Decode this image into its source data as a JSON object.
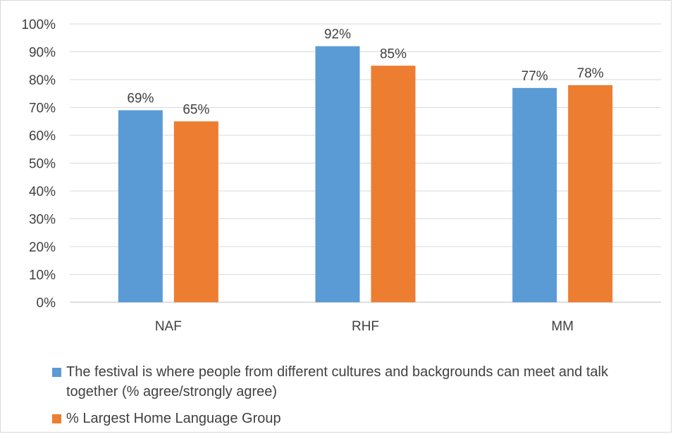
{
  "chart_data": {
    "type": "bar",
    "categories": [
      "NAF",
      "RHF",
      "MM"
    ],
    "series": [
      {
        "name": "The festival is where people from different cultures and backgrounds can meet and talk together (% agree/strongly agree)",
        "values": [
          69,
          92,
          77
        ],
        "color": "#5b9bd5"
      },
      {
        "name": "% Largest Home Language Group",
        "values": [
          65,
          85,
          78
        ],
        "color": "#ed7d31"
      }
    ],
    "data_labels": [
      [
        "69%",
        "92%",
        "77%"
      ],
      [
        "65%",
        "85%",
        "78%"
      ]
    ],
    "yticks": [
      "0%",
      "10%",
      "20%",
      "30%",
      "40%",
      "50%",
      "60%",
      "70%",
      "80%",
      "90%",
      "100%"
    ],
    "ylim": [
      0,
      100
    ],
    "grid": true,
    "legend_position": "bottom",
    "title": "",
    "xlabel": "",
    "ylabel": ""
  }
}
